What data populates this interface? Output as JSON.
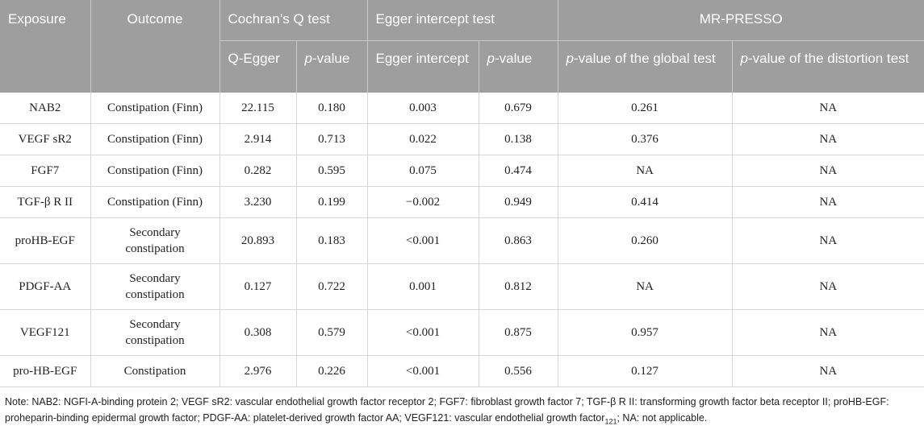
{
  "header": {
    "exposure": "Exposure",
    "outcome": "Outcome",
    "cochran": "Cochran’s Q test",
    "egger": "Egger intercept test",
    "mrpresso": "MR-PRESSO",
    "q_egger": "Q-Egger",
    "p_italic": "p",
    "p_value_suffix": "-value",
    "egger_intercept": "Egger intercept",
    "p_global_suffix": "-value of the global test",
    "p_distortion_suffix": "-value of the distortion test"
  },
  "rows": [
    {
      "exposure": "NAB2",
      "outcome": "Constipation (Finn)",
      "q_egger": "22.115",
      "q_p": "0.180",
      "intercept": "0.003",
      "egger_p": "0.679",
      "global_p": "0.261",
      "distortion_p": "NA",
      "lines": 1
    },
    {
      "exposure": "VEGF sR2",
      "outcome": "Constipation (Finn)",
      "q_egger": "2.914",
      "q_p": "0.713",
      "intercept": "0.022",
      "egger_p": "0.138",
      "global_p": "0.376",
      "distortion_p": "NA",
      "lines": 1
    },
    {
      "exposure": "FGF7",
      "outcome": "Constipation (Finn)",
      "q_egger": "0.282",
      "q_p": "0.595",
      "intercept": "0.075",
      "egger_p": "0.474",
      "global_p": "NA",
      "distortion_p": "NA",
      "lines": 1
    },
    {
      "exposure": "TGF-β R II",
      "outcome": "Constipation (Finn)",
      "q_egger": "3.230",
      "q_p": "0.199",
      "intercept": "−0.002",
      "egger_p": "0.949",
      "global_p": "0.414",
      "distortion_p": "NA",
      "lines": 1
    },
    {
      "exposure": "proHB-EGF",
      "outcome": "Secondary\nconstipation",
      "q_egger": "20.893",
      "q_p": "0.183",
      "intercept": "<0.001",
      "egger_p": "0.863",
      "global_p": "0.260",
      "distortion_p": "NA",
      "lines": 2
    },
    {
      "exposure": "PDGF-AA",
      "outcome": "Secondary\nconstipation",
      "q_egger": "0.127",
      "q_p": "0.722",
      "intercept": "0.001",
      "egger_p": "0.812",
      "global_p": "NA",
      "distortion_p": "NA",
      "lines": 2
    },
    {
      "exposure": "VEGF121",
      "outcome": "Secondary\nconstipation",
      "q_egger": "0.308",
      "q_p": "0.579",
      "intercept": "<0.001",
      "egger_p": "0.875",
      "global_p": "0.957",
      "distortion_p": "NA",
      "lines": 2
    },
    {
      "exposure": "pro-HB-EGF",
      "outcome": "Constipation",
      "q_egger": "2.976",
      "q_p": "0.226",
      "intercept": "<0.001",
      "egger_p": "0.556",
      "global_p": "0.127",
      "distortion_p": "NA",
      "lines": 1
    }
  ],
  "note": {
    "main": "Note: NAB2: NGFI-A-binding protein 2; VEGF sR2: vascular endothelial growth factor receptor 2; FGF7: fibroblast growth factor 7; TGF-β R II: transforming growth factor beta receptor II; proHB-EGF: proheparin-binding epidermal growth factor; PDGF-AA: platelet-derived growth factor AA; VEGF121: vascular endothelial growth factor",
    "subscript": "121",
    "tail": "; NA: not applicable."
  }
}
